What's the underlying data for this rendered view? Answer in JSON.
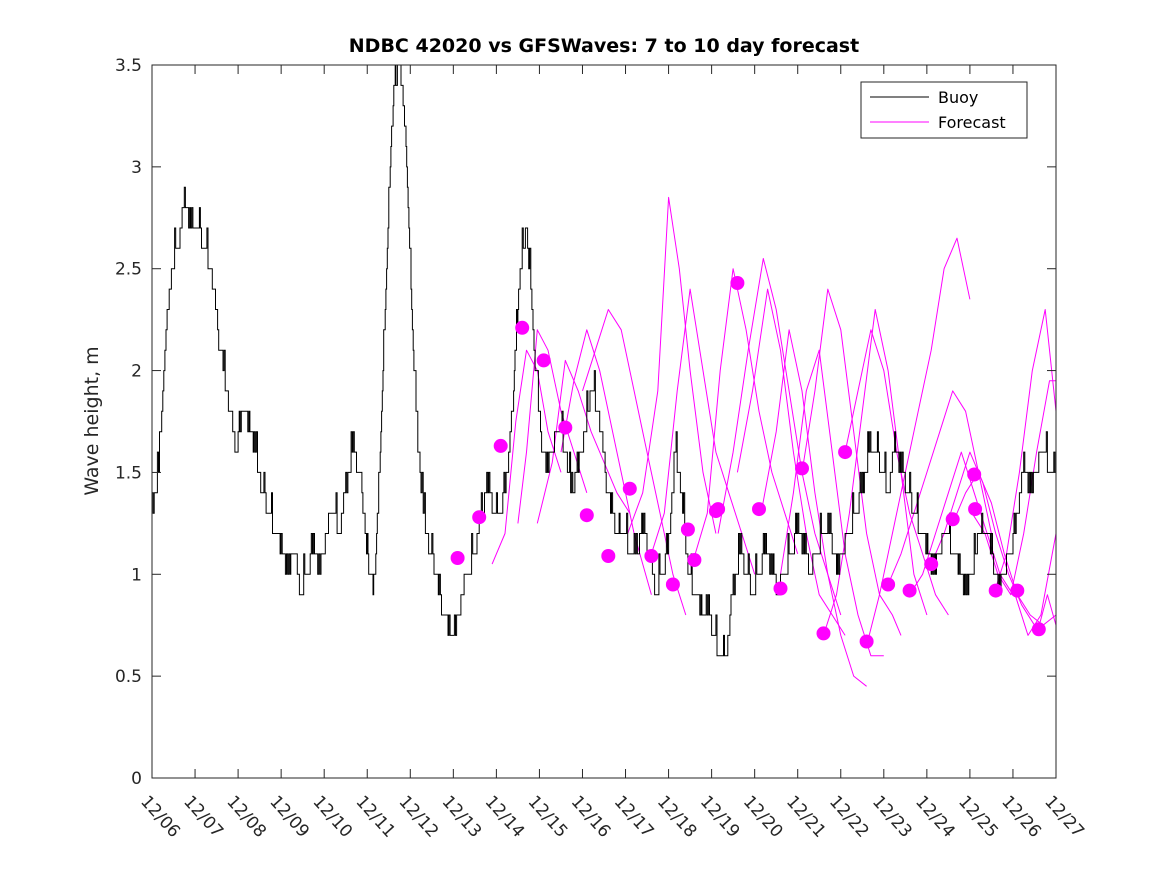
{
  "chart_data": {
    "type": "line",
    "title": "NDBC 42020 vs GFSWaves: 7 to 10 day forecast",
    "xlabel": "",
    "ylabel": "Wave height, m",
    "xlim": [
      0,
      21
    ],
    "ylim": [
      0,
      3.5
    ],
    "x_unit": "days since 12/06 00:00",
    "x_tick_labels": [
      "12/06",
      "12/07",
      "12/08",
      "12/09",
      "12/10",
      "12/11",
      "12/12",
      "12/13",
      "12/14",
      "12/15",
      "12/16",
      "12/17",
      "12/18",
      "12/19",
      "12/20",
      "12/21",
      "12/22",
      "12/23",
      "12/24",
      "12/25",
      "12/26",
      "12/27"
    ],
    "y_tick_labels": [
      "0",
      "0.5",
      "1",
      "1.5",
      "2",
      "2.5",
      "3",
      "3.5"
    ],
    "y_ticks": [
      0,
      0.5,
      1,
      1.5,
      2,
      2.5,
      3,
      3.5
    ],
    "legend": {
      "position": "top-right",
      "entries": [
        "Buoy",
        "Forecast"
      ]
    },
    "colors": {
      "buoy": "#000000",
      "forecast": "#ff00ff"
    },
    "series": [
      {
        "name": "Buoy",
        "style": "step",
        "x": [
          0,
          0.15,
          0.3,
          0.45,
          0.6,
          0.75,
          0.9,
          1.05,
          1.2,
          1.35,
          1.5,
          1.65,
          1.8,
          1.95,
          2.1,
          2.25,
          2.4,
          2.55,
          2.7,
          2.85,
          3.0,
          3.15,
          3.3,
          3.45,
          3.6,
          3.75,
          3.9,
          4.05,
          4.2,
          4.35,
          4.5,
          4.65,
          4.8,
          4.95,
          5.05,
          5.15,
          5.25,
          5.35,
          5.45,
          5.55,
          5.65,
          5.75,
          5.85,
          5.95,
          6.05,
          6.15,
          6.3,
          6.45,
          6.6,
          6.75,
          6.9,
          7.05,
          7.2,
          7.35,
          7.5,
          7.65,
          7.8,
          7.95,
          8.1,
          8.25,
          8.35,
          8.45,
          8.55,
          8.7,
          8.85,
          9.0,
          9.15,
          9.3,
          9.45,
          9.6,
          9.75,
          9.9,
          10.05,
          10.2,
          10.35,
          10.5,
          10.65,
          10.8,
          10.95,
          11.1,
          11.25,
          11.4,
          11.55,
          11.7,
          11.85,
          12.0,
          12.15,
          12.3,
          12.45,
          12.6,
          12.75,
          12.9,
          13.05,
          13.2,
          13.35,
          13.5,
          13.65,
          13.8,
          13.95,
          14.1,
          14.25,
          14.4,
          14.55,
          14.7,
          14.85,
          15.0,
          15.15,
          15.3,
          15.45,
          15.6,
          15.75,
          15.9,
          16.05,
          16.2,
          16.35,
          16.5,
          16.65,
          16.8,
          16.95,
          17.1,
          17.25,
          17.4,
          17.55,
          17.7,
          17.85,
          18.0,
          18.15,
          18.3,
          18.45,
          18.6,
          18.75,
          18.9,
          19.05,
          19.2,
          19.35,
          19.5,
          19.65,
          19.8,
          19.95,
          20.1,
          20.25,
          20.4,
          20.55,
          20.7,
          20.85,
          21.0
        ],
        "values": [
          1.3,
          1.5,
          2.1,
          2.5,
          2.6,
          2.8,
          2.7,
          2.7,
          2.6,
          2.5,
          2.2,
          2.0,
          1.8,
          1.6,
          1.8,
          1.7,
          1.6,
          1.4,
          1.3,
          1.2,
          1.1,
          1.0,
          1.1,
          0.9,
          1.0,
          1.1,
          1.0,
          1.2,
          1.3,
          1.2,
          1.4,
          1.6,
          1.5,
          1.2,
          1.0,
          0.9,
          1.3,
          1.9,
          2.5,
          3.1,
          3.4,
          3.5,
          3.3,
          2.8,
          2.2,
          1.7,
          1.3,
          1.1,
          1.0,
          0.8,
          0.7,
          0.7,
          0.9,
          1.0,
          1.1,
          1.3,
          1.4,
          1.3,
          1.3,
          1.5,
          1.7,
          2.1,
          2.5,
          2.7,
          2.2,
          1.7,
          1.5,
          1.6,
          1.7,
          1.6,
          1.4,
          1.5,
          1.7,
          1.9,
          1.8,
          1.5,
          1.3,
          1.2,
          1.2,
          1.1,
          1.1,
          1.2,
          1.1,
          0.9,
          1.0,
          1.1,
          1.6,
          1.4,
          1.0,
          0.9,
          0.8,
          0.8,
          0.7,
          0.6,
          0.6,
          0.9,
          1.1,
          1.0,
          0.9,
          1.0,
          1.1,
          1.0,
          0.9,
          1.0,
          1.1,
          1.2,
          1.1,
          1.0,
          1.1,
          1.2,
          1.2,
          1.0,
          1.1,
          1.2,
          1.3,
          1.4,
          1.6,
          1.6,
          1.5,
          1.4,
          1.6,
          1.5,
          1.4,
          1.3,
          1.2,
          1.1,
          1.0,
          1.1,
          1.2,
          1.1,
          1.0,
          0.9,
          1.0,
          1.2,
          1.2,
          1.1,
          0.9,
          1.0,
          1.1,
          1.3,
          1.5,
          1.4,
          1.5,
          1.6,
          1.5,
          1.5
        ]
      }
    ],
    "forecast_lines": [
      {
        "x": [
          7.9,
          8.2,
          8.45,
          8.7,
          8.95,
          9.2,
          9.5
        ],
        "values": [
          1.05,
          1.2,
          1.75,
          2.1,
          2.0,
          1.7,
          1.5
        ]
      },
      {
        "x": [
          8.5,
          8.7,
          8.95,
          9.2,
          9.5,
          9.8,
          10.1
        ],
        "values": [
          1.25,
          1.6,
          2.2,
          2.1,
          1.8,
          1.6,
          1.4
        ]
      },
      {
        "x": [
          8.95,
          9.3,
          9.6,
          9.9,
          10.2,
          10.5,
          10.8,
          11.1
        ],
        "values": [
          1.25,
          1.55,
          2.05,
          1.9,
          1.7,
          1.55,
          1.4,
          1.3
        ]
      },
      {
        "x": [
          9.5,
          9.8,
          10.1,
          10.4,
          10.8,
          11.2,
          11.6
        ],
        "values": [
          1.6,
          1.95,
          2.2,
          2.0,
          1.6,
          1.2,
          0.9
        ]
      },
      {
        "x": [
          10.0,
          10.3,
          10.6,
          10.9,
          11.2,
          11.5,
          11.8,
          12.1,
          12.4
        ],
        "values": [
          1.9,
          2.1,
          2.3,
          2.2,
          1.9,
          1.6,
          1.3,
          1.0,
          0.8
        ]
      },
      {
        "x": [
          11.05,
          11.4,
          11.75,
          12.0,
          12.25,
          12.5,
          12.8,
          13.1
        ],
        "values": [
          1.2,
          1.4,
          1.9,
          2.85,
          2.5,
          2.0,
          1.5,
          1.2
        ]
      },
      {
        "x": [
          11.6,
          11.9,
          12.2,
          12.5,
          12.8,
          13.1,
          13.4,
          13.7,
          14.0
        ],
        "values": [
          1.1,
          1.3,
          1.9,
          2.4,
          2.0,
          1.6,
          1.4,
          1.2,
          1.0
        ]
      },
      {
        "x": [
          12.55,
          12.9,
          13.2,
          13.5,
          13.8,
          14.1,
          14.4,
          14.7,
          15.0
        ],
        "values": [
          1.05,
          1.3,
          2.0,
          2.5,
          2.2,
          1.8,
          1.5,
          1.3,
          1.1
        ]
      },
      {
        "x": [
          13.15,
          13.5,
          13.85,
          14.2,
          14.5,
          14.8,
          15.1,
          15.4,
          15.7,
          16.0
        ],
        "values": [
          1.2,
          1.6,
          2.1,
          2.55,
          2.3,
          1.9,
          1.5,
          1.2,
          1.0,
          0.8
        ]
      },
      {
        "x": [
          13.6,
          13.95,
          14.3,
          14.6,
          14.9,
          15.2,
          15.5,
          15.8,
          16.1
        ],
        "values": [
          1.5,
          1.9,
          2.4,
          2.1,
          1.6,
          1.2,
          0.9,
          0.8,
          0.7
        ]
      },
      {
        "x": [
          14.15,
          14.5,
          14.8,
          15.1,
          15.4,
          15.7,
          16.0,
          16.3,
          16.6
        ],
        "values": [
          1.3,
          1.7,
          2.2,
          1.9,
          1.4,
          1.0,
          0.7,
          0.5,
          0.45
        ]
      },
      {
        "x": [
          14.6,
          14.9,
          15.2,
          15.5,
          15.8,
          16.1,
          16.4,
          16.7,
          17.0
        ],
        "values": [
          1.0,
          1.4,
          1.9,
          2.1,
          1.6,
          1.1,
          0.8,
          0.6,
          0.6
        ]
      },
      {
        "x": [
          15.1,
          15.4,
          15.7,
          16.0,
          16.3,
          16.6,
          16.9,
          17.2,
          17.4
        ],
        "values": [
          1.5,
          1.9,
          2.4,
          2.2,
          1.7,
          1.2,
          0.9,
          0.8,
          0.7
        ]
      },
      {
        "x": [
          15.6,
          15.9,
          16.2,
          16.5,
          16.8,
          17.1,
          17.4,
          17.7,
          18.0
        ],
        "values": [
          0.7,
          0.9,
          1.3,
          1.8,
          2.3,
          2.0,
          1.5,
          1.0,
          0.8
        ]
      },
      {
        "x": [
          16.1,
          16.4,
          16.7,
          17.0,
          17.3,
          17.6,
          17.9,
          18.2,
          18.5
        ],
        "values": [
          1.6,
          1.9,
          2.2,
          2.0,
          1.6,
          1.3,
          1.1,
          0.9,
          0.8
        ]
      },
      {
        "x": [
          16.6,
          16.9,
          17.2,
          17.5,
          17.8,
          18.1,
          18.4,
          18.7,
          19.0
        ],
        "values": [
          0.65,
          0.9,
          1.2,
          1.5,
          1.8,
          2.1,
          2.5,
          2.65,
          2.35
        ]
      },
      {
        "x": [
          17.1,
          17.4,
          17.7,
          18.0,
          18.3,
          18.6,
          18.9,
          19.2,
          19.5
        ],
        "values": [
          0.95,
          1.1,
          1.3,
          1.5,
          1.7,
          1.9,
          1.8,
          1.5,
          1.2
        ]
      },
      {
        "x": [
          17.6,
          17.9,
          18.2,
          18.5,
          18.8,
          19.1,
          19.4,
          19.7,
          20.0
        ],
        "values": [
          0.9,
          1.0,
          1.2,
          1.4,
          1.6,
          1.4,
          1.2,
          1.0,
          0.9
        ]
      },
      {
        "x": [
          18.1,
          18.4,
          18.7,
          19.0,
          19.3,
          19.6,
          19.9,
          20.2,
          20.5
        ],
        "values": [
          1.05,
          1.2,
          1.4,
          1.6,
          1.45,
          1.2,
          1.0,
          0.85,
          0.75
        ]
      },
      {
        "x": [
          18.6,
          18.9,
          19.2,
          19.5,
          19.8,
          20.1,
          20.4,
          20.7,
          21.0
        ],
        "values": [
          1.25,
          1.4,
          1.5,
          1.35,
          1.1,
          0.9,
          0.8,
          0.75,
          0.8
        ]
      },
      {
        "x": [
          19.05,
          19.35,
          19.65,
          19.95,
          20.25,
          20.55,
          20.85,
          21.0
        ],
        "values": [
          1.3,
          1.2,
          1.0,
          0.9,
          1.2,
          1.6,
          1.95,
          1.95
        ]
      },
      {
        "x": [
          19.55,
          19.85,
          20.15,
          20.45,
          20.75,
          21.0
        ],
        "values": [
          0.9,
          1.1,
          1.5,
          2.0,
          2.3,
          1.8
        ]
      },
      {
        "x": [
          20.05,
          20.35,
          20.65,
          21.0
        ],
        "values": [
          0.9,
          0.7,
          0.8,
          1.2
        ]
      },
      {
        "x": [
          20.55,
          20.8,
          21.0
        ],
        "values": [
          0.7,
          0.9,
          0.75
        ]
      }
    ],
    "forecast_markers": {
      "x": [
        7.1,
        7.6,
        8.1,
        8.6,
        9.1,
        9.6,
        10.1,
        10.6,
        11.1,
        11.6,
        12.1,
        12.6,
        13.1,
        13.6,
        14.1,
        14.6,
        15.1,
        15.6,
        16.1,
        16.6,
        17.1,
        17.6,
        18.1,
        18.6,
        19.1,
        19.6,
        20.1,
        20.6
      ],
      "values": [
        1.08,
        1.28,
        1.63,
        2.21,
        2.05,
        1.72,
        1.29,
        1.09,
        1.42,
        1.09,
        0.95,
        1.07,
        1.31,
        2.43,
        1.32,
        0.93,
        1.52,
        0.71,
        1.6,
        0.67,
        0.95,
        0.92,
        1.05,
        1.27,
        1.49,
        0.92,
        0.92,
        0.73
      ]
    },
    "extra_markers": {
      "x": [
        12.45,
        13.15,
        19.12
      ],
      "values": [
        1.22,
        1.32,
        1.32
      ]
    }
  }
}
